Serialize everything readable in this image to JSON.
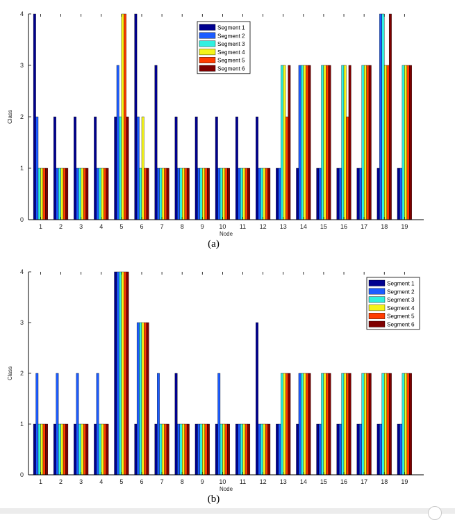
{
  "colors": {
    "segments": [
      "#00008f",
      "#1c5cff",
      "#30f0e0",
      "#f4f41a",
      "#ff3c00",
      "#7f0000"
    ],
    "axis": "#000000",
    "tick_text": "#222222"
  },
  "chart_data": [
    {
      "type": "bar",
      "panel_label": "(a)",
      "xlabel": "Node",
      "ylabel": "Class",
      "ylim": [
        0,
        4
      ],
      "yticks": [
        0,
        1,
        2,
        3,
        4
      ],
      "legend_position": "top-center",
      "categories": [
        "1",
        "2",
        "3",
        "4",
        "5",
        "6",
        "7",
        "8",
        "9",
        "10",
        "11",
        "12",
        "13",
        "14",
        "15",
        "16",
        "17",
        "18",
        "19"
      ],
      "series": [
        {
          "name": "Segment 1",
          "values": [
            4,
            2,
            2,
            2,
            2,
            4,
            3,
            2,
            2,
            2,
            2,
            2,
            1,
            1,
            1,
            1,
            1,
            1,
            1
          ]
        },
        {
          "name": "Segment 2",
          "values": [
            2,
            1,
            1,
            1,
            3,
            2,
            1,
            1,
            1,
            1,
            1,
            1,
            1,
            3,
            1,
            1,
            1,
            4,
            1
          ]
        },
        {
          "name": "Segment 3",
          "values": [
            1,
            1,
            1,
            1,
            2,
            1,
            1,
            1,
            1,
            1,
            1,
            1,
            3,
            3,
            3,
            3,
            3,
            4,
            3
          ]
        },
        {
          "name": "Segment 4",
          "values": [
            1,
            1,
            1,
            1,
            4,
            2,
            1,
            1,
            1,
            1,
            1,
            1,
            3,
            3,
            3,
            3,
            3,
            3,
            3
          ]
        },
        {
          "name": "Segment 5",
          "values": [
            1,
            1,
            1,
            1,
            4,
            1,
            1,
            1,
            1,
            1,
            1,
            1,
            2,
            3,
            3,
            2,
            3,
            3,
            3
          ]
        },
        {
          "name": "Segment 6",
          "values": [
            1,
            1,
            1,
            1,
            2,
            1,
            1,
            1,
            1,
            1,
            1,
            1,
            3,
            3,
            3,
            3,
            3,
            4,
            3
          ]
        }
      ]
    },
    {
      "type": "bar",
      "panel_label": "(b)",
      "xlabel": "Node",
      "ylabel": "Class",
      "ylim": [
        0,
        4
      ],
      "yticks": [
        0,
        1,
        2,
        3,
        4
      ],
      "legend_position": "top-right",
      "categories": [
        "1",
        "2",
        "3",
        "4",
        "5",
        "6",
        "7",
        "8",
        "9",
        "10",
        "11",
        "12",
        "13",
        "14",
        "15",
        "16",
        "17",
        "18",
        "19"
      ],
      "series": [
        {
          "name": "Segment 1",
          "values": [
            1,
            1,
            1,
            1,
            4,
            1,
            1,
            2,
            1,
            1,
            1,
            3,
            1,
            1,
            1,
            1,
            1,
            1,
            1
          ]
        },
        {
          "name": "Segment 2",
          "values": [
            2,
            2,
            2,
            2,
            4,
            3,
            2,
            1,
            1,
            2,
            1,
            1,
            1,
            2,
            1,
            1,
            1,
            1,
            1
          ]
        },
        {
          "name": "Segment 3",
          "values": [
            1,
            1,
            1,
            1,
            4,
            3,
            1,
            1,
            1,
            1,
            1,
            1,
            2,
            2,
            2,
            2,
            2,
            2,
            2
          ]
        },
        {
          "name": "Segment 4",
          "values": [
            1,
            1,
            1,
            1,
            4,
            3,
            1,
            1,
            1,
            1,
            1,
            1,
            2,
            2,
            2,
            2,
            2,
            2,
            2
          ]
        },
        {
          "name": "Segment 5",
          "values": [
            1,
            1,
            1,
            1,
            4,
            3,
            1,
            1,
            1,
            1,
            1,
            1,
            2,
            2,
            2,
            2,
            2,
            2,
            2
          ]
        },
        {
          "name": "Segment 6",
          "values": [
            1,
            1,
            1,
            1,
            4,
            3,
            1,
            1,
            1,
            1,
            1,
            1,
            2,
            2,
            2,
            2,
            2,
            2,
            2
          ]
        }
      ]
    }
  ]
}
